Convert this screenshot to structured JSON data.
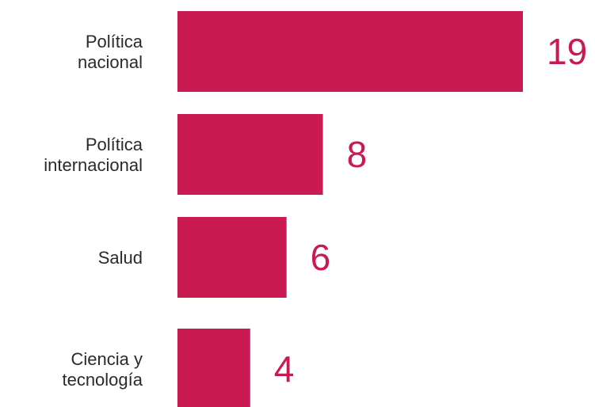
{
  "chart_data": {
    "type": "bar",
    "orientation": "horizontal",
    "categories": [
      [
        "Política",
        "nacional"
      ],
      [
        "Política",
        "internacional"
      ],
      [
        "Salud"
      ],
      [
        "Ciencia y",
        "tecnología"
      ]
    ],
    "values": [
      19,
      8,
      6,
      4
    ],
    "xlim": [
      0,
      19
    ],
    "grid": false,
    "title": "",
    "xlabel": "",
    "ylabel": ""
  },
  "colors": {
    "bar": "#c91b52",
    "value_text": "#c91b52",
    "label_text": "#2a2a2a"
  }
}
